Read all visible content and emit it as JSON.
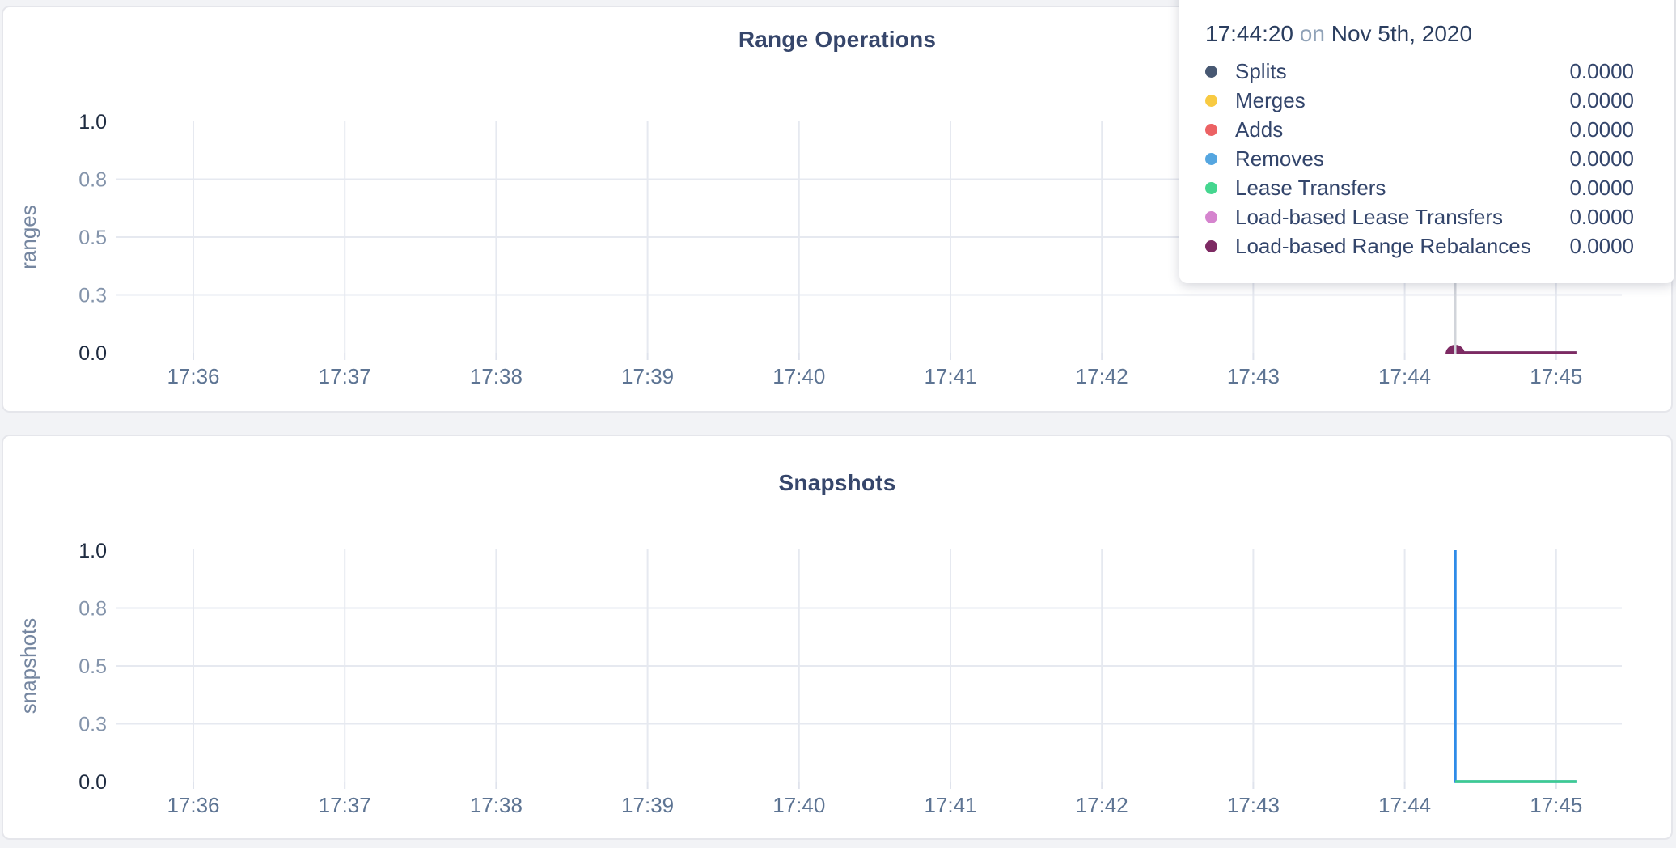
{
  "page": {
    "background": "#f2f3f6"
  },
  "tooltip": {
    "time": "17:44:20",
    "connector": "on",
    "date": "Nov 5th, 2020",
    "rows": [
      {
        "label": "Splits",
        "color": "#475872",
        "value": "0.0000"
      },
      {
        "label": "Merges",
        "color": "#f8ca42",
        "value": "0.0000"
      },
      {
        "label": "Adds",
        "color": "#ec6264",
        "value": "0.0000"
      },
      {
        "label": "Removes",
        "color": "#55a6e0",
        "value": "0.0000"
      },
      {
        "label": "Lease Transfers",
        "color": "#45d68f",
        "value": "0.0000"
      },
      {
        "label": "Load-based Lease Transfers",
        "color": "#d584ce",
        "value": "0.0000"
      },
      {
        "label": "Load-based Range Rebalances",
        "color": "#7d2a63",
        "value": "0.0000"
      }
    ]
  },
  "chart_data": [
    {
      "type": "line",
      "title": "Range Operations",
      "ylabel": "ranges",
      "xlabel": "",
      "xticks": [
        "17:36",
        "17:37",
        "17:38",
        "17:39",
        "17:40",
        "17:41",
        "17:42",
        "17:43",
        "17:44",
        "17:45"
      ],
      "ytick_labels": [
        "1.0",
        "0.8",
        "0.5",
        "0.3",
        "0.0"
      ],
      "ytick_values": [
        1,
        0.75,
        0.5,
        0.25,
        0
      ],
      "ylim": [
        0,
        1
      ],
      "grid": true,
      "legend_position": "tooltip",
      "series": [
        {
          "name": "Splits",
          "color": "#475872",
          "points": [
            [
              "17:44:20",
              0
            ],
            [
              "17:45:08",
              0
            ]
          ]
        },
        {
          "name": "Merges",
          "color": "#f8ca42",
          "points": [
            [
              "17:44:20",
              0
            ],
            [
              "17:45:08",
              0
            ]
          ]
        },
        {
          "name": "Adds",
          "color": "#ec6264",
          "points": [
            [
              "17:44:20",
              0
            ],
            [
              "17:45:08",
              0
            ]
          ]
        },
        {
          "name": "Removes",
          "color": "#55a6e0",
          "points": [
            [
              "17:44:20",
              0
            ],
            [
              "17:45:08",
              0
            ]
          ]
        },
        {
          "name": "Lease Transfers",
          "color": "#45d68f",
          "points": [
            [
              "17:44:20",
              0
            ],
            [
              "17:45:08",
              0
            ]
          ]
        },
        {
          "name": "Load-based Lease Transfers",
          "color": "#d584ce",
          "points": [
            [
              "17:44:20",
              0
            ],
            [
              "17:45:08",
              0
            ]
          ]
        },
        {
          "name": "Load-based Range Rebalances",
          "color": "#7d2a63",
          "points": [
            [
              "17:44:20",
              0
            ],
            [
              "17:45:08",
              0
            ]
          ]
        }
      ],
      "hover": {
        "time": "17:44:20",
        "marker_value": 0,
        "marker_color": "#7d2a63",
        "crosshair": true
      }
    },
    {
      "type": "line",
      "title": "Snapshots",
      "ylabel": "snapshots",
      "xlabel": "",
      "xticks": [
        "17:36",
        "17:37",
        "17:38",
        "17:39",
        "17:40",
        "17:41",
        "17:42",
        "17:43",
        "17:44",
        "17:45"
      ],
      "ytick_labels": [
        "1.0",
        "0.8",
        "0.5",
        "0.3",
        "0.0"
      ],
      "ytick_values": [
        1,
        0.75,
        0.5,
        0.25,
        0
      ],
      "ylim": [
        0,
        1
      ],
      "grid": true,
      "series": [
        {
          "name": "",
          "color": "#2e8be8",
          "points": [
            [
              "17:44:20",
              1
            ],
            [
              "17:44:20",
              0
            ],
            [
              "17:45:08",
              0
            ]
          ]
        },
        {
          "name": "",
          "color": "#3ecd8e",
          "points": [
            [
              "17:44:20",
              0
            ],
            [
              "17:45:08",
              0
            ]
          ]
        }
      ]
    }
  ]
}
